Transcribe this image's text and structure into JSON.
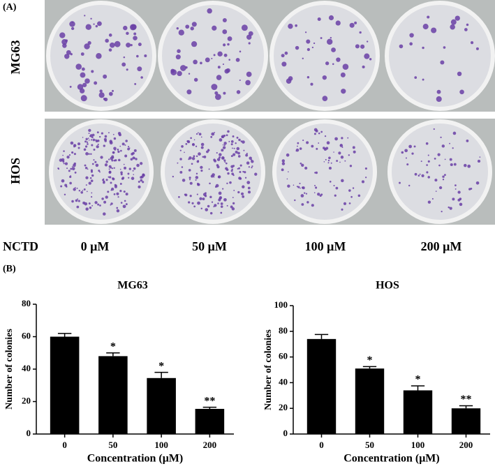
{
  "panel_a": {
    "label": "(A)",
    "rows": [
      "MG63",
      "HOS"
    ],
    "treatment": "NCTD",
    "doses": [
      "0 μM",
      "50 μM",
      "100 μM",
      "200 μM"
    ]
  },
  "panel_b": {
    "label": "(B)"
  },
  "chart_data": [
    {
      "type": "bar",
      "title": "MG63",
      "x_label": "Concentration (μM)",
      "y_label": "Number of colonies",
      "categories": [
        "0",
        "50",
        "100",
        "200"
      ],
      "values": [
        60,
        48,
        34.5,
        15.5
      ],
      "errors": [
        2,
        2,
        3.5,
        1
      ],
      "significance": [
        null,
        "*",
        "*",
        "**"
      ],
      "color": "#000000",
      "ylim": [
        0,
        80
      ],
      "yticks": [
        0,
        20,
        40,
        60,
        80
      ]
    },
    {
      "type": "bar",
      "title": "HOS",
      "x_label": "Concentration (μM)",
      "y_label": "Number of colonies",
      "categories": [
        "0",
        "50",
        "100",
        "200"
      ],
      "values": [
        74,
        51,
        34,
        20
      ],
      "errors": [
        3.5,
        1.5,
        3.5,
        2
      ],
      "significance": [
        null,
        "*",
        "*",
        "**"
      ],
      "color": "#000000",
      "ylim": [
        0,
        100
      ],
      "yticks": [
        0,
        20,
        40,
        60,
        80,
        100
      ]
    }
  ]
}
